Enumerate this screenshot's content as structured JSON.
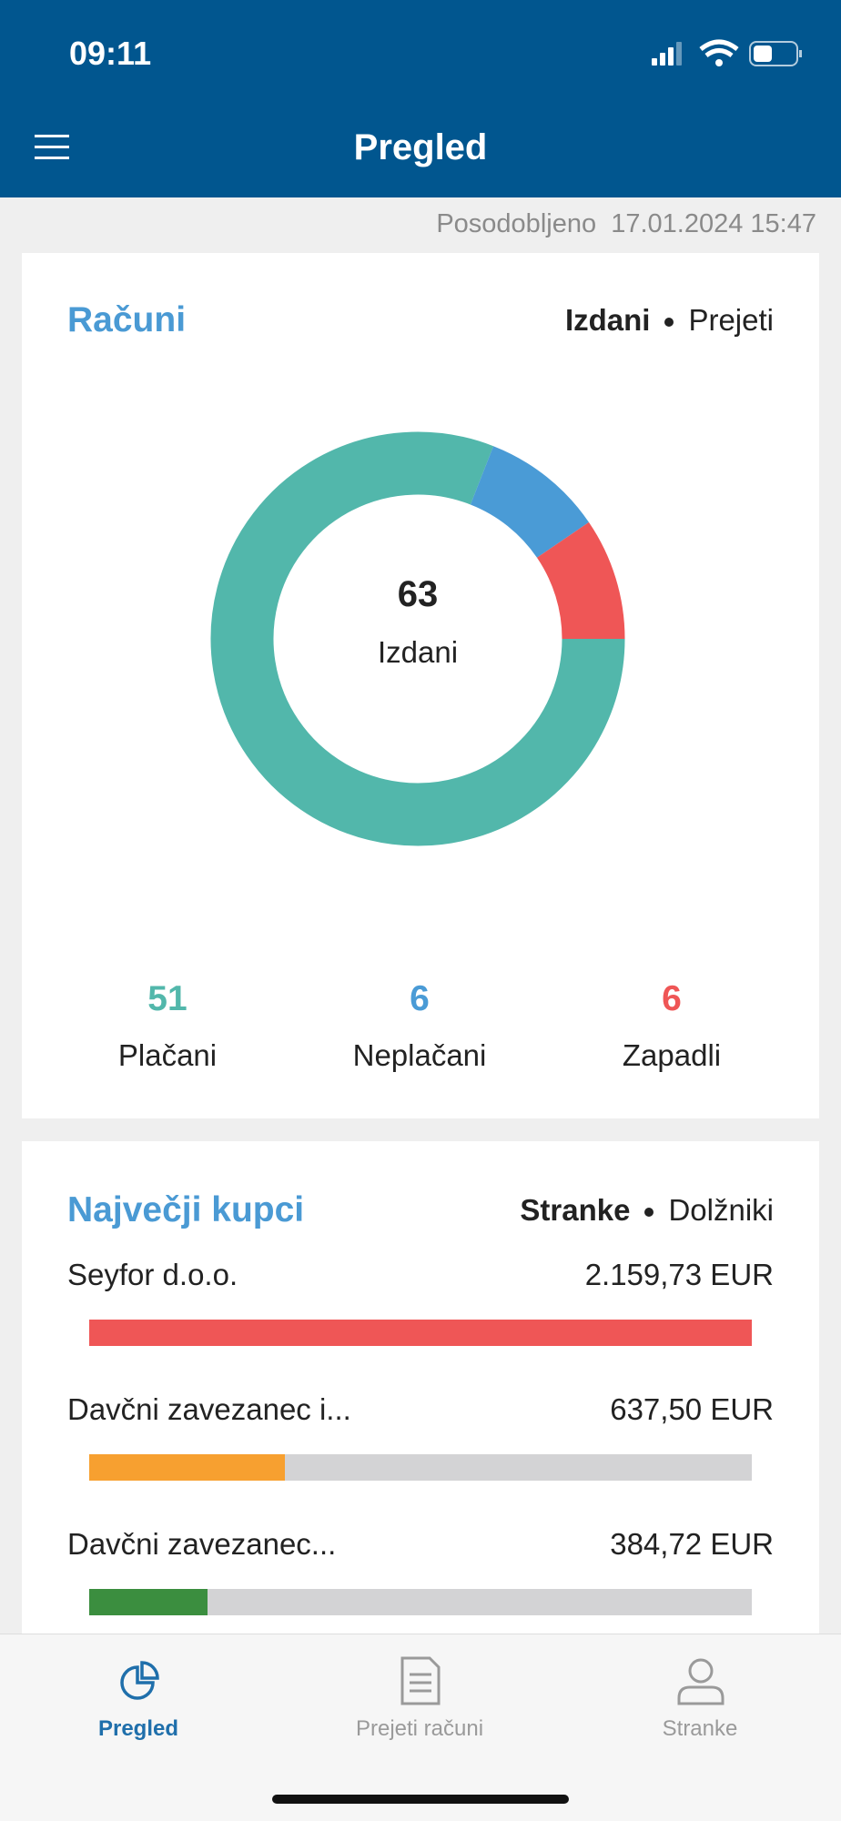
{
  "status_bar": {
    "time": "09:11"
  },
  "header": {
    "title": "Pregled"
  },
  "updated": {
    "label": "Posodobljeno",
    "timestamp": "17.01.2024 15:47"
  },
  "invoices": {
    "title": "Računi",
    "toggle": [
      "Izdani",
      "Prejeti"
    ],
    "center_value": 63,
    "center_label": "Izdani",
    "chart_data": {
      "type": "donut",
      "categories": [
        "Plačani",
        "Neplačani",
        "Zapadli"
      ],
      "values": [
        51,
        6,
        6
      ],
      "colors": [
        "#52b7ab",
        "#4a9bd6",
        "#ef5656"
      ]
    }
  },
  "customers": {
    "title": "Največji kupci",
    "toggle": [
      "Stranke",
      "Dolžniki"
    ],
    "chart_data": {
      "type": "bar",
      "categories": [
        "Seyfor d.o.o.",
        "Davčni zavezanec i...",
        "Davčni zavezanec..."
      ],
      "values": [
        2159.73,
        637.5,
        384.72
      ],
      "value_labels": [
        "2.159,73 EUR",
        "637,50 EUR",
        "384,72 EUR"
      ],
      "colors": [
        "#ef5656",
        "#f7a030",
        "#3b8e3f"
      ],
      "track_color": "#d3d3d5"
    }
  },
  "tabs": [
    {
      "label": "Pregled"
    },
    {
      "label": "Prejeti računi"
    },
    {
      "label": "Stranke"
    }
  ]
}
